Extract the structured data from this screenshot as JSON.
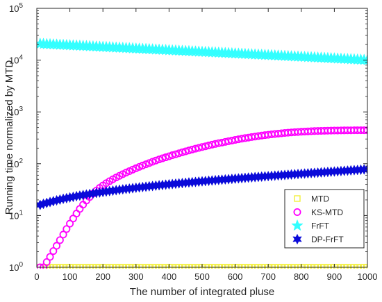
{
  "chart_data": {
    "type": "scatter",
    "title": "",
    "xlabel": "The number of integrated pluse",
    "ylabel": "Running time normalized by MTD",
    "xlim": [
      0,
      1000
    ],
    "ylim": [
      1,
      100000
    ],
    "yscale": "log",
    "x_ticks": [
      0,
      100,
      200,
      300,
      400,
      500,
      600,
      700,
      800,
      900,
      1000
    ],
    "y_ticks": [
      {
        "base": "10",
        "exp": "0"
      },
      {
        "base": "10",
        "exp": "1"
      },
      {
        "base": "10",
        "exp": "2"
      },
      {
        "base": "10",
        "exp": "3"
      },
      {
        "base": "10",
        "exp": "4"
      },
      {
        "base": "10",
        "exp": "5"
      }
    ],
    "grid": false,
    "legend_position": "bottom-right",
    "x": [
      10,
      20,
      30,
      40,
      50,
      60,
      70,
      80,
      90,
      100,
      110,
      120,
      130,
      140,
      150,
      160,
      170,
      180,
      190,
      200,
      210,
      220,
      230,
      240,
      250,
      260,
      270,
      280,
      290,
      300,
      310,
      320,
      330,
      340,
      350,
      360,
      370,
      380,
      390,
      400,
      410,
      420,
      430,
      440,
      450,
      460,
      470,
      480,
      490,
      500,
      510,
      520,
      530,
      540,
      550,
      560,
      570,
      580,
      590,
      600,
      610,
      620,
      630,
      640,
      650,
      660,
      670,
      680,
      690,
      700,
      710,
      720,
      730,
      740,
      750,
      760,
      770,
      780,
      790,
      800,
      810,
      820,
      830,
      840,
      850,
      860,
      870,
      880,
      890,
      900,
      910,
      920,
      930,
      940,
      950,
      960,
      970,
      980,
      990,
      1000
    ],
    "series": [
      {
        "name": "MTD",
        "marker": "square",
        "color": "#f2ef3b",
        "values": [
          1,
          1,
          1,
          1,
          1,
          1,
          1,
          1,
          1,
          1,
          1,
          1,
          1,
          1,
          1,
          1,
          1,
          1,
          1,
          1,
          1,
          1,
          1,
          1,
          1,
          1,
          1,
          1,
          1,
          1,
          1,
          1,
          1,
          1,
          1,
          1,
          1,
          1,
          1,
          1,
          1,
          1,
          1,
          1,
          1,
          1,
          1,
          1,
          1,
          1,
          1,
          1,
          1,
          1,
          1,
          1,
          1,
          1,
          1,
          1,
          1,
          1,
          1,
          1,
          1,
          1,
          1,
          1,
          1,
          1,
          1,
          1,
          1,
          1,
          1,
          1,
          1,
          1,
          1,
          1,
          1,
          1,
          1,
          1,
          1,
          1,
          1,
          1,
          1,
          1,
          1,
          1,
          1,
          1,
          1,
          1,
          1,
          1,
          1,
          1
        ]
      },
      {
        "name": "KS-MTD",
        "marker": "circle",
        "color": "#ff00ff",
        "values": [
          1.0,
          1.0,
          1.26,
          1.59,
          2.06,
          2.6,
          3.35,
          4.28,
          5.48,
          6.96,
          8.74,
          10.9,
          13.4,
          16.2,
          19.4,
          22.8,
          26.4,
          30.2,
          34.1,
          38.0,
          42.0,
          46.0,
          50.0,
          54.2,
          58.4,
          62.8,
          67.3,
          72.0,
          76.8,
          81.8,
          86.9,
          92.2,
          97.6,
          103,
          109,
          115,
          121,
          127,
          133,
          139,
          146,
          152,
          159,
          166,
          173,
          180,
          188,
          195,
          202,
          210,
          217,
          225,
          233,
          241,
          249,
          256,
          264,
          272,
          280,
          288,
          296,
          304,
          312,
          319,
          327,
          334,
          342,
          349,
          356,
          362,
          369,
          375,
          381,
          387,
          392,
          397,
          402,
          406,
          410,
          414,
          418,
          421,
          424,
          427,
          429,
          431,
          433,
          434,
          436,
          437,
          438,
          439,
          440,
          441,
          441,
          442,
          442,
          442,
          442,
          442
        ]
      },
      {
        "name": "FrFT",
        "marker": "star5",
        "color": "#33ffff",
        "values": [
          20653,
          20503,
          20354,
          20206,
          20059,
          19913,
          19768,
          19624,
          19481,
          19339,
          19198,
          19058,
          18919,
          18781,
          18644,
          18509,
          18374,
          18240,
          18107,
          17976,
          17845,
          17715,
          17586,
          17458,
          17331,
          17205,
          17080,
          16955,
          16832,
          16710,
          16588,
          16467,
          16348,
          16229,
          16110,
          15993,
          15877,
          15761,
          15647,
          15533,
          15420,
          15307,
          15196,
          15085,
          14976,
          14867,
          14758,
          14651,
          14545,
          14439,
          14334,
          14229,
          14126,
          14023,
          13921,
          13820,
          13719,
          13619,
          13520,
          13422,
          13324,
          13227,
          13131,
          13035,
          12941,
          12847,
          12753,
          12660,
          12568,
          12477,
          12386,
          12296,
          12206,
          12117,
          12029,
          11942,
          11855,
          11769,
          11683,
          11598,
          11513,
          11429,
          11346,
          11264,
          11182,
          11100,
          11019,
          10939,
          10859,
          10780,
          10702,
          10624,
          10547,
          10470,
          10394,
          10318,
          10243,
          10168,
          10094,
          10021
        ]
      },
      {
        "name": "DP-FrFT",
        "marker": "star6",
        "color": "#0a0ad9",
        "values": [
          16.0,
          16.8,
          17.5,
          18.2,
          18.9,
          19.6,
          20.3,
          21.0,
          21.6,
          22.3,
          22.9,
          23.6,
          24.2,
          24.8,
          25.4,
          26.0,
          26.6,
          27.3,
          27.8,
          28.4,
          29.0,
          29.6,
          30.2,
          30.8,
          31.4,
          32.0,
          32.6,
          33.1,
          33.7,
          34.3,
          34.9,
          35.4,
          36.0,
          36.6,
          37.1,
          37.7,
          38.3,
          38.8,
          39.4,
          40.0,
          40.5,
          41.1,
          41.7,
          42.2,
          42.8,
          43.4,
          43.9,
          44.5,
          45.1,
          45.7,
          46.2,
          46.8,
          47.4,
          48.0,
          48.6,
          49.1,
          49.7,
          50.3,
          50.9,
          51.5,
          52.1,
          52.7,
          53.3,
          53.9,
          54.5,
          55.1,
          55.7,
          56.3,
          56.9,
          57.5,
          58.1,
          58.8,
          59.4,
          60.0,
          60.6,
          61.3,
          61.9,
          62.6,
          63.2,
          63.9,
          64.5,
          65.2,
          65.9,
          66.5,
          67.2,
          67.9,
          68.6,
          69.3,
          70.0,
          70.7,
          71.4,
          72.1,
          72.9,
          73.6,
          74.3,
          75.1,
          75.8,
          76.6,
          77.4,
          78.1
        ]
      }
    ]
  }
}
